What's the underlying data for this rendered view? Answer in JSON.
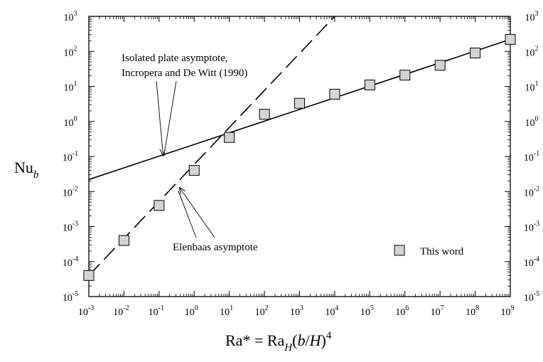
{
  "chart_data": {
    "type": "scatter",
    "x_scale": "log",
    "y_scale": "log",
    "xlim": [
      0.001,
      1000000000
    ],
    "ylim": [
      1e-05,
      1000
    ],
    "x_ticks": [
      {
        "base": "10",
        "exp": "-3"
      },
      {
        "base": "10",
        "exp": "-2"
      },
      {
        "base": "10",
        "exp": "-1"
      },
      {
        "base": "10",
        "exp": "0"
      },
      {
        "base": "10",
        "exp": "1"
      },
      {
        "base": "10",
        "exp": "2"
      },
      {
        "base": "10",
        "exp": "3"
      },
      {
        "base": "10",
        "exp": "4"
      },
      {
        "base": "10",
        "exp": "5"
      },
      {
        "base": "10",
        "exp": "6"
      },
      {
        "base": "10",
        "exp": "7"
      },
      {
        "base": "10",
        "exp": "8"
      },
      {
        "base": "10",
        "exp": "9"
      }
    ],
    "y_ticks": [
      {
        "base": "10",
        "exp": "-5"
      },
      {
        "base": "10",
        "exp": "-4"
      },
      {
        "base": "10",
        "exp": "-3"
      },
      {
        "base": "10",
        "exp": "-2"
      },
      {
        "base": "10",
        "exp": "-1"
      },
      {
        "base": "10",
        "exp": "0"
      },
      {
        "base": "10",
        "exp": "1"
      },
      {
        "base": "10",
        "exp": "2"
      },
      {
        "base": "10",
        "exp": "3"
      }
    ],
    "xlabel": {
      "main": "Ra* = Ra",
      "sub": "H",
      "paren_open": "(",
      "b": "b",
      "slash": "/",
      "H": "H",
      "paren_close": ")",
      "sup": "4"
    },
    "ylabel": {
      "main": "Nu",
      "sub": "b"
    },
    "series": [
      {
        "name": "This word",
        "marker": "square",
        "color": "#d3d3d3",
        "x": [
          0.001,
          0.01,
          0.1,
          1,
          10,
          100,
          1000,
          10000,
          100000,
          1000000,
          10000000,
          100000000,
          1000000000
        ],
        "y": [
          4e-05,
          0.0004,
          0.004,
          0.04,
          0.35,
          1.6,
          3.3,
          6.0,
          11,
          21,
          40,
          90,
          220
        ]
      }
    ],
    "lines": [
      {
        "style": "solid",
        "x": [
          0.001,
          1000000000
        ],
        "y": [
          0.022,
          220
        ]
      },
      {
        "style": "dashed",
        "x": [
          0.001,
          10000
        ],
        "y": [
          4e-05,
          1000
        ]
      }
    ],
    "annotations": [
      {
        "lines": [
          "Isolated plate asymptote,",
          "Incropera and De Witt (1990)"
        ],
        "target_x": 0.13,
        "target_y": 0.11
      },
      {
        "lines": [
          "Elenbaas asymptote"
        ],
        "target_x": 0.35,
        "target_y": 0.014
      }
    ],
    "legend_position": "bottom-right",
    "grid": false
  }
}
